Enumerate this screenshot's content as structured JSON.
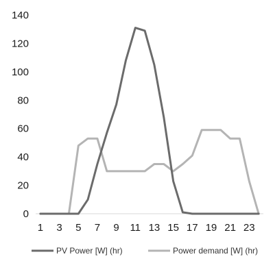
{
  "colors": {
    "pv": "#6b6b6b",
    "demand": "#b4b4b4",
    "axis": "#d9d9d9"
  },
  "chart_data": {
    "type": "line",
    "title": "",
    "xlabel": "",
    "ylabel": "",
    "x": [
      1,
      2,
      3,
      4,
      5,
      6,
      7,
      8,
      9,
      10,
      11,
      12,
      13,
      14,
      15,
      16,
      17,
      18,
      19,
      20,
      21,
      22,
      23,
      24
    ],
    "x_tick_labels": [
      "1",
      "3",
      "5",
      "7",
      "9",
      "11",
      "13",
      "15",
      "17",
      "19",
      "21",
      "23"
    ],
    "ylim": [
      0,
      140
    ],
    "y_tick_labels": [
      "0",
      "20",
      "40",
      "60",
      "80",
      "100",
      "120",
      "140"
    ],
    "grid": false,
    "legend_position": "bottom",
    "series": [
      {
        "name": "PV Power [W] (hr)",
        "values": [
          0,
          0,
          0,
          0,
          0,
          10,
          35,
          57,
          77,
          108,
          131,
          129,
          105,
          68,
          23,
          1,
          0,
          0,
          0,
          0,
          0,
          0,
          0,
          0
        ]
      },
      {
        "name": "Power demand [W] (hr)",
        "values": [
          0,
          0,
          0,
          0,
          48,
          53,
          53,
          30,
          30,
          30,
          30,
          30,
          35,
          35,
          30,
          35,
          41,
          59,
          59,
          59,
          53,
          53,
          23,
          0
        ]
      }
    ]
  }
}
